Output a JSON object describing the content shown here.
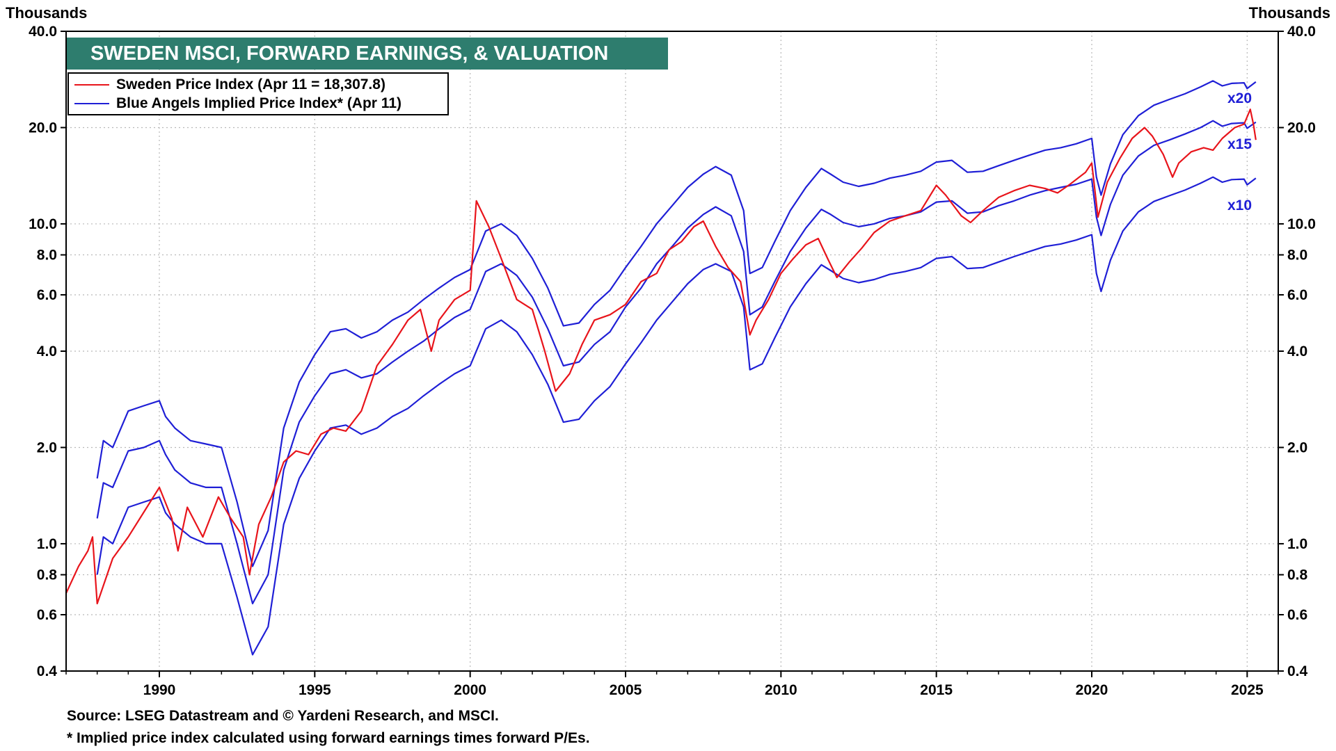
{
  "header": {
    "left_unit": "Thousands",
    "right_unit": "Thousands"
  },
  "footnotes": {
    "source": "Source: LSEG Datastream and © Yardeni Research, and MSCI.",
    "note": "* Implied price index calculated using forward earnings times forward P/Es."
  },
  "colors": {
    "title_bg": "#2e7d6e",
    "price_line": "#e8141b",
    "implied_line": "#1f1fd6",
    "grid": "#b8b8b8"
  },
  "chart_data": {
    "type": "line",
    "title": "SWEDEN MSCI, FORWARD EARNINGS, & VALUATION",
    "xlabel": "",
    "ylabel": "Thousands",
    "y_scale": "log",
    "ylim": [
      0.4,
      40.0
    ],
    "xlim": [
      1987.0,
      2026.0
    ],
    "y_ticks": [
      0.4,
      0.6,
      0.8,
      1.0,
      2.0,
      4.0,
      6.0,
      8.0,
      10.0,
      20.0,
      40.0
    ],
    "y_tick_labels": [
      "0.4",
      "0.6",
      "0.8",
      "1.0",
      "2.0",
      "4.0",
      "6.0",
      "8.0",
      "10.0",
      "20.0",
      "40.0"
    ],
    "x_ticks": [
      1990,
      1995,
      2000,
      2005,
      2010,
      2015,
      2020,
      2025
    ],
    "x_tick_labels": [
      "1990",
      "1995",
      "2000",
      "2005",
      "2010",
      "2015",
      "2020",
      "2025"
    ],
    "grid": true,
    "legend_position": "top-left",
    "series": [
      {
        "name": "Sweden Price Index (Apr 11 = 18,307.8)",
        "color": "#e8141b",
        "x": [
          1987.0,
          1987.4,
          1987.7,
          1987.85,
          1988.0,
          1988.5,
          1989.0,
          1989.6,
          1990.0,
          1990.4,
          1990.6,
          1990.9,
          1991.4,
          1991.9,
          1992.3,
          1992.7,
          1992.9,
          1993.2,
          1993.6,
          1994.0,
          1994.4,
          1994.8,
          1995.2,
          1995.6,
          1996.0,
          1996.5,
          1997.0,
          1997.5,
          1998.0,
          1998.4,
          1998.75,
          1999.0,
          1999.5,
          2000.0,
          2000.2,
          2000.6,
          2001.0,
          2001.5,
          2002.0,
          2002.4,
          2002.75,
          2003.2,
          2003.6,
          2004.0,
          2004.5,
          2005.0,
          2005.5,
          2006.0,
          2006.4,
          2006.8,
          2007.2,
          2007.5,
          2007.9,
          2008.3,
          2008.7,
          2009.0,
          2009.2,
          2009.6,
          2010.0,
          2010.4,
          2010.8,
          2011.2,
          2011.5,
          2011.8,
          2012.2,
          2012.6,
          2013.0,
          2013.5,
          2014.0,
          2014.5,
          2015.0,
          2015.3,
          2015.8,
          2016.1,
          2016.5,
          2017.0,
          2017.5,
          2018.0,
          2018.5,
          2018.9,
          2019.3,
          2019.8,
          2020.0,
          2020.2,
          2020.5,
          2020.9,
          2021.3,
          2021.7,
          2021.95,
          2022.3,
          2022.6,
          2022.8,
          2023.2,
          2023.6,
          2023.9,
          2024.2,
          2024.6,
          2024.9,
          2025.1,
          2025.2,
          2025.28
        ],
        "values": [
          0.7,
          0.85,
          0.95,
          1.05,
          0.65,
          0.9,
          1.05,
          1.3,
          1.5,
          1.2,
          0.95,
          1.3,
          1.05,
          1.4,
          1.2,
          1.05,
          0.8,
          1.15,
          1.4,
          1.8,
          1.95,
          1.9,
          2.2,
          2.3,
          2.25,
          2.6,
          3.6,
          4.2,
          5.0,
          5.4,
          4.0,
          5.0,
          5.8,
          6.2,
          11.8,
          9.8,
          7.8,
          5.8,
          5.4,
          4.0,
          3.0,
          3.4,
          4.2,
          5.0,
          5.2,
          5.6,
          6.6,
          7.0,
          8.3,
          8.8,
          9.8,
          10.2,
          8.5,
          7.3,
          6.6,
          4.5,
          5.0,
          5.8,
          7.0,
          7.8,
          8.6,
          9.0,
          7.8,
          6.8,
          7.6,
          8.4,
          9.4,
          10.2,
          10.6,
          11.0,
          13.2,
          12.3,
          10.6,
          10.1,
          11.0,
          12.1,
          12.7,
          13.2,
          12.9,
          12.5,
          13.3,
          14.5,
          15.5,
          10.5,
          13.5,
          16.0,
          18.5,
          20.0,
          18.8,
          16.5,
          14.0,
          15.5,
          16.8,
          17.3,
          17.0,
          18.5,
          20.0,
          20.5,
          22.8,
          20.5,
          18.3
        ]
      },
      {
        "name": "Blue Angels Implied Price Index* (Apr 11)",
        "color": "#1f1fd6",
        "multiplier_label": "x20",
        "x": [
          1988.0,
          1988.2,
          1988.5,
          1989.0,
          1989.5,
          1990.0,
          1990.2,
          1990.5,
          1991.0,
          1991.5,
          1992.0,
          1992.5,
          1993.0,
          1993.5,
          1994.0,
          1994.5,
          1995.0,
          1995.5,
          1996.0,
          1996.5,
          1997.0,
          1997.5,
          1998.0,
          1998.5,
          1999.0,
          1999.5,
          2000.0,
          2000.5,
          2001.0,
          2001.5,
          2002.0,
          2002.5,
          2003.0,
          2003.5,
          2004.0,
          2004.5,
          2005.0,
          2005.5,
          2006.0,
          2006.5,
          2007.0,
          2007.5,
          2007.9,
          2008.4,
          2008.8,
          2009.0,
          2009.4,
          2009.8,
          2010.3,
          2010.8,
          2011.3,
          2011.6,
          2012.0,
          2012.5,
          2013.0,
          2013.5,
          2014.0,
          2014.5,
          2015.0,
          2015.5,
          2016.0,
          2016.5,
          2017.0,
          2017.5,
          2018.0,
          2018.5,
          2019.0,
          2019.5,
          2020.0,
          2020.15,
          2020.3,
          2020.6,
          2021.0,
          2021.5,
          2022.0,
          2022.5,
          2023.0,
          2023.5,
          2023.9,
          2024.2,
          2024.5,
          2024.9,
          2025.0,
          2025.28
        ],
        "values": [
          1.6,
          2.1,
          2.0,
          2.6,
          2.7,
          2.8,
          2.5,
          2.3,
          2.1,
          2.05,
          2.0,
          1.35,
          0.85,
          1.1,
          2.3,
          3.2,
          3.9,
          4.6,
          4.7,
          4.4,
          4.6,
          5.0,
          5.3,
          5.8,
          6.3,
          6.8,
          7.2,
          9.5,
          10.0,
          9.2,
          7.8,
          6.3,
          4.8,
          4.9,
          5.6,
          6.2,
          7.3,
          8.5,
          10.0,
          11.4,
          13.0,
          14.3,
          15.1,
          14.2,
          11.0,
          7.0,
          7.3,
          8.8,
          11.0,
          13.0,
          14.9,
          14.3,
          13.5,
          13.1,
          13.4,
          13.9,
          14.2,
          14.6,
          15.6,
          15.8,
          14.5,
          14.6,
          15.2,
          15.8,
          16.4,
          17.0,
          17.3,
          17.8,
          18.5,
          14.0,
          12.3,
          15.4,
          19.0,
          21.8,
          23.5,
          24.5,
          25.5,
          26.8,
          28.0,
          27.0,
          27.5,
          27.6,
          26.5,
          27.8
        ]
      },
      {
        "name": "Implied x15",
        "color": "#1f1fd6",
        "multiplier_label": "x15",
        "x": [
          1988.0,
          1988.2,
          1988.5,
          1989.0,
          1989.5,
          1990.0,
          1990.2,
          1990.5,
          1991.0,
          1991.5,
          1992.0,
          1992.5,
          1993.0,
          1993.5,
          1994.0,
          1994.5,
          1995.0,
          1995.5,
          1996.0,
          1996.5,
          1997.0,
          1997.5,
          1998.0,
          1998.5,
          1999.0,
          1999.5,
          2000.0,
          2000.5,
          2001.0,
          2001.5,
          2002.0,
          2002.5,
          2003.0,
          2003.5,
          2004.0,
          2004.5,
          2005.0,
          2005.5,
          2006.0,
          2006.5,
          2007.0,
          2007.5,
          2007.9,
          2008.4,
          2008.8,
          2009.0,
          2009.4,
          2009.8,
          2010.3,
          2010.8,
          2011.3,
          2011.6,
          2012.0,
          2012.5,
          2013.0,
          2013.5,
          2014.0,
          2014.5,
          2015.0,
          2015.5,
          2016.0,
          2016.5,
          2017.0,
          2017.5,
          2018.0,
          2018.5,
          2019.0,
          2019.5,
          2020.0,
          2020.15,
          2020.3,
          2020.6,
          2021.0,
          2021.5,
          2022.0,
          2022.5,
          2023.0,
          2023.5,
          2023.9,
          2024.2,
          2024.5,
          2024.9,
          2025.0,
          2025.28
        ],
        "values": [
          1.2,
          1.55,
          1.5,
          1.95,
          2.0,
          2.1,
          1.9,
          1.7,
          1.55,
          1.5,
          1.5,
          1.0,
          0.65,
          0.8,
          1.7,
          2.4,
          2.9,
          3.4,
          3.5,
          3.3,
          3.4,
          3.7,
          4.0,
          4.3,
          4.7,
          5.1,
          5.4,
          7.1,
          7.5,
          6.9,
          5.9,
          4.7,
          3.6,
          3.7,
          4.2,
          4.6,
          5.5,
          6.3,
          7.5,
          8.5,
          9.7,
          10.7,
          11.3,
          10.6,
          8.2,
          5.2,
          5.5,
          6.6,
          8.2,
          9.7,
          11.1,
          10.7,
          10.1,
          9.8,
          10.0,
          10.4,
          10.6,
          10.9,
          11.7,
          11.8,
          10.8,
          10.9,
          11.4,
          11.8,
          12.3,
          12.7,
          13.0,
          13.3,
          13.8,
          10.5,
          9.2,
          11.5,
          14.2,
          16.3,
          17.6,
          18.3,
          19.1,
          20.0,
          21.0,
          20.2,
          20.6,
          20.7,
          19.9,
          20.8
        ]
      },
      {
        "name": "Implied x10",
        "color": "#1f1fd6",
        "multiplier_label": "x10",
        "x": [
          1988.0,
          1988.2,
          1988.5,
          1989.0,
          1989.5,
          1990.0,
          1990.2,
          1990.5,
          1991.0,
          1991.5,
          1992.0,
          1992.5,
          1993.0,
          1993.5,
          1994.0,
          1994.5,
          1995.0,
          1995.5,
          1996.0,
          1996.5,
          1997.0,
          1997.5,
          1998.0,
          1998.5,
          1999.0,
          1999.5,
          2000.0,
          2000.5,
          2001.0,
          2001.5,
          2002.0,
          2002.5,
          2003.0,
          2003.5,
          2004.0,
          2004.5,
          2005.0,
          2005.5,
          2006.0,
          2006.5,
          2007.0,
          2007.5,
          2007.9,
          2008.4,
          2008.8,
          2009.0,
          2009.4,
          2009.8,
          2010.3,
          2010.8,
          2011.3,
          2011.6,
          2012.0,
          2012.5,
          2013.0,
          2013.5,
          2014.0,
          2014.5,
          2015.0,
          2015.5,
          2016.0,
          2016.5,
          2017.0,
          2017.5,
          2018.0,
          2018.5,
          2019.0,
          2019.5,
          2020.0,
          2020.15,
          2020.3,
          2020.6,
          2021.0,
          2021.5,
          2022.0,
          2022.5,
          2023.0,
          2023.5,
          2023.9,
          2024.2,
          2024.5,
          2024.9,
          2025.0,
          2025.28
        ],
        "values": [
          0.8,
          1.05,
          1.0,
          1.3,
          1.35,
          1.4,
          1.25,
          1.15,
          1.05,
          1.0,
          1.0,
          0.68,
          0.45,
          0.55,
          1.15,
          1.6,
          1.95,
          2.3,
          2.35,
          2.2,
          2.3,
          2.5,
          2.65,
          2.9,
          3.15,
          3.4,
          3.6,
          4.7,
          5.0,
          4.6,
          3.9,
          3.15,
          2.4,
          2.45,
          2.8,
          3.1,
          3.65,
          4.25,
          5.0,
          5.7,
          6.5,
          7.2,
          7.5,
          7.1,
          5.5,
          3.5,
          3.65,
          4.4,
          5.5,
          6.5,
          7.45,
          7.15,
          6.75,
          6.55,
          6.7,
          6.95,
          7.1,
          7.3,
          7.8,
          7.9,
          7.25,
          7.3,
          7.6,
          7.9,
          8.2,
          8.5,
          8.65,
          8.9,
          9.25,
          7.0,
          6.15,
          7.7,
          9.5,
          10.9,
          11.75,
          12.25,
          12.75,
          13.4,
          14.0,
          13.5,
          13.75,
          13.8,
          13.25,
          13.9
        ]
      }
    ]
  }
}
